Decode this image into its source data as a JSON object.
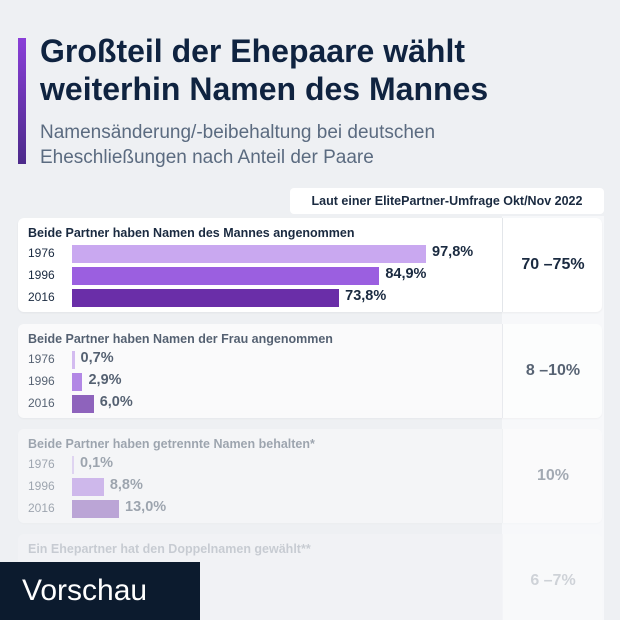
{
  "title_lines": [
    "Großteil der Ehepaare wählt",
    "weiterhin Namen des Mannes"
  ],
  "subtitle_lines": [
    "Namensänderung/-beibehaltung bei deutschen",
    "Eheschließungen nach Anteil der Paare"
  ],
  "source_tag": "Laut einer ElitePartner-Umfrage Okt/Nov 2022",
  "preview_label": "Vorschau",
  "colors": {
    "title": "#0f2340",
    "bar_1976": "#c9a8f0",
    "bar_1996": "#9b5fe0",
    "bar_2016": "#6a2ea8"
  },
  "chart_data": {
    "type": "bar",
    "orientation": "horizontal",
    "unit": "%",
    "xlim": [
      0,
      100
    ],
    "groups": [
      {
        "label": "Beide Partner haben Namen des Mannes angenommen",
        "years": [
          "1976",
          "1996",
          "2016"
        ],
        "values": [
          97.8,
          84.9,
          73.8
        ],
        "value_labels": [
          "97,8%",
          "84,9%",
          "73,8%"
        ],
        "survey_range": "70 –75%"
      },
      {
        "label": "Beide Partner haben Namen der Frau angenommen",
        "years": [
          "1976",
          "1996",
          "2016"
        ],
        "values": [
          0.7,
          2.9,
          6.0
        ],
        "value_labels": [
          "0,7%",
          "2,9%",
          "6,0%"
        ],
        "survey_range": "8 –10%"
      },
      {
        "label": "Beide Partner haben getrennte Namen behalten*",
        "years": [
          "1976",
          "1996",
          "2016"
        ],
        "values": [
          0.1,
          8.8,
          13.0
        ],
        "value_labels": [
          "0,1%",
          "8,8%",
          "13,0%"
        ],
        "survey_range": "10%"
      },
      {
        "label": "Ein Ehepartner hat den Doppelnamen gewählt**",
        "years": [],
        "values": [],
        "value_labels": [],
        "survey_range": "6 –7%"
      }
    ]
  }
}
